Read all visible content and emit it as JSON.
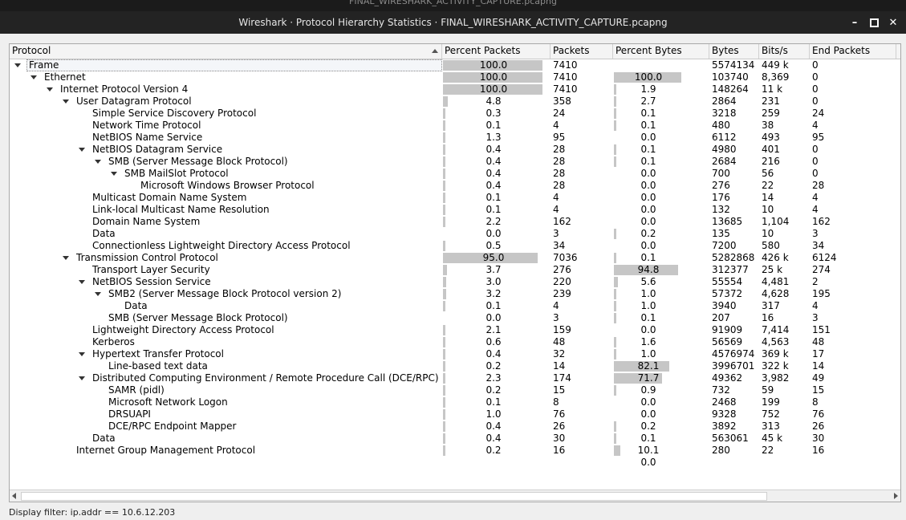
{
  "background_title": "FINAL_WIRESHARK_ACTIVITY_CAPTURE.pcapng",
  "window_title": "Wireshark · Protocol Hierarchy Statistics · FINAL_WIRESHARK_ACTIVITY_CAPTURE.pcapng",
  "window_controls": {
    "minimize": "–",
    "close": "✕"
  },
  "columns": [
    "Protocol",
    "Percent Packets",
    "Packets",
    "Percent Bytes",
    "Bytes",
    "Bits/s",
    "End Packets"
  ],
  "rows": [
    {
      "name": "Frame",
      "depth": 0,
      "expanded": true,
      "pct_packets": "100.0",
      "packets": "7410",
      "pct_bytes": "100.0",
      "bytes": "5574134",
      "bits": "449 k",
      "end_packets": "0"
    },
    {
      "name": "Ethernet",
      "depth": 1,
      "expanded": true,
      "pct_packets": "100.0",
      "packets": "7410",
      "pct_bytes": "1.9",
      "bytes": "103740",
      "bits": "8,369",
      "end_packets": "0"
    },
    {
      "name": "Internet Protocol Version 4",
      "depth": 2,
      "expanded": true,
      "pct_packets": "100.0",
      "packets": "7410",
      "pct_bytes": "2.7",
      "bytes": "148264",
      "bits": "11 k",
      "end_packets": "0"
    },
    {
      "name": "User Datagram Protocol",
      "depth": 3,
      "expanded": true,
      "pct_packets": "4.8",
      "packets": "358",
      "pct_bytes": "0.1",
      "bytes": "2864",
      "bits": "231",
      "end_packets": "0"
    },
    {
      "name": "Simple Service Discovery Protocol",
      "depth": 4,
      "expanded": false,
      "pct_packets": "0.3",
      "packets": "24",
      "pct_bytes": "0.1",
      "bytes": "3218",
      "bits": "259",
      "end_packets": "24"
    },
    {
      "name": "Network Time Protocol",
      "depth": 4,
      "expanded": false,
      "pct_packets": "0.1",
      "packets": "4",
      "pct_bytes": "0.0",
      "bytes": "480",
      "bits": "38",
      "end_packets": "4"
    },
    {
      "name": "NetBIOS Name Service",
      "depth": 4,
      "expanded": false,
      "pct_packets": "1.3",
      "packets": "95",
      "pct_bytes": "0.1",
      "bytes": "6112",
      "bits": "493",
      "end_packets": "95"
    },
    {
      "name": "NetBIOS Datagram Service",
      "depth": 4,
      "expanded": true,
      "pct_packets": "0.4",
      "packets": "28",
      "pct_bytes": "0.1",
      "bytes": "4980",
      "bits": "401",
      "end_packets": "0"
    },
    {
      "name": "SMB (Server Message Block Protocol)",
      "depth": 5,
      "expanded": true,
      "pct_packets": "0.4",
      "packets": "28",
      "pct_bytes": "0.0",
      "bytes": "2684",
      "bits": "216",
      "end_packets": "0"
    },
    {
      "name": "SMB MailSlot Protocol",
      "depth": 6,
      "expanded": true,
      "pct_packets": "0.4",
      "packets": "28",
      "pct_bytes": "0.0",
      "bytes": "700",
      "bits": "56",
      "end_packets": "0"
    },
    {
      "name": "Microsoft Windows Browser Protocol",
      "depth": 7,
      "expanded": false,
      "pct_packets": "0.4",
      "packets": "28",
      "pct_bytes": "0.0",
      "bytes": "276",
      "bits": "22",
      "end_packets": "28"
    },
    {
      "name": "Multicast Domain Name System",
      "depth": 4,
      "expanded": false,
      "pct_packets": "0.1",
      "packets": "4",
      "pct_bytes": "0.0",
      "bytes": "176",
      "bits": "14",
      "end_packets": "4"
    },
    {
      "name": "Link-local Multicast Name Resolution",
      "depth": 4,
      "expanded": false,
      "pct_packets": "0.1",
      "packets": "4",
      "pct_bytes": "0.0",
      "bytes": "132",
      "bits": "10",
      "end_packets": "4"
    },
    {
      "name": "Domain Name System",
      "depth": 4,
      "expanded": false,
      "pct_packets": "2.2",
      "packets": "162",
      "pct_bytes": "0.2",
      "bytes": "13685",
      "bits": "1,104",
      "end_packets": "162"
    },
    {
      "name": "Data",
      "depth": 4,
      "expanded": false,
      "pct_packets": "0.0",
      "packets": "3",
      "pct_bytes": "0.0",
      "bytes": "135",
      "bits": "10",
      "end_packets": "3"
    },
    {
      "name": "Connectionless Lightweight Directory Access Protocol",
      "depth": 4,
      "expanded": false,
      "pct_packets": "0.5",
      "packets": "34",
      "pct_bytes": "0.1",
      "bytes": "7200",
      "bits": "580",
      "end_packets": "34"
    },
    {
      "name": "Transmission Control Protocol",
      "depth": 3,
      "expanded": true,
      "pct_packets": "95.0",
      "packets": "7036",
      "pct_bytes": "94.8",
      "bytes": "5282868",
      "bits": "426 k",
      "end_packets": "6124"
    },
    {
      "name": "Transport Layer Security",
      "depth": 4,
      "expanded": false,
      "pct_packets": "3.7",
      "packets": "276",
      "pct_bytes": "5.6",
      "bytes": "312377",
      "bits": "25 k",
      "end_packets": "274"
    },
    {
      "name": "NetBIOS Session Service",
      "depth": 4,
      "expanded": true,
      "pct_packets": "3.0",
      "packets": "220",
      "pct_bytes": "1.0",
      "bytes": "55554",
      "bits": "4,481",
      "end_packets": "2"
    },
    {
      "name": "SMB2 (Server Message Block Protocol version 2)",
      "depth": 5,
      "expanded": true,
      "pct_packets": "3.2",
      "packets": "239",
      "pct_bytes": "1.0",
      "bytes": "57372",
      "bits": "4,628",
      "end_packets": "195"
    },
    {
      "name": "Data",
      "depth": 6,
      "expanded": false,
      "pct_packets": "0.1",
      "packets": "4",
      "pct_bytes": "0.1",
      "bytes": "3940",
      "bits": "317",
      "end_packets": "4"
    },
    {
      "name": "SMB (Server Message Block Protocol)",
      "depth": 5,
      "expanded": false,
      "pct_packets": "0.0",
      "packets": "3",
      "pct_bytes": "0.0",
      "bytes": "207",
      "bits": "16",
      "end_packets": "3"
    },
    {
      "name": "Lightweight Directory Access Protocol",
      "depth": 4,
      "expanded": false,
      "pct_packets": "2.1",
      "packets": "159",
      "pct_bytes": "1.6",
      "bytes": "91909",
      "bits": "7,414",
      "end_packets": "151"
    },
    {
      "name": "Kerberos",
      "depth": 4,
      "expanded": false,
      "pct_packets": "0.6",
      "packets": "48",
      "pct_bytes": "1.0",
      "bytes": "56569",
      "bits": "4,563",
      "end_packets": "48"
    },
    {
      "name": "Hypertext Transfer Protocol",
      "depth": 4,
      "expanded": true,
      "pct_packets": "0.4",
      "packets": "32",
      "pct_bytes": "82.1",
      "bytes": "4576974",
      "bits": "369 k",
      "end_packets": "17"
    },
    {
      "name": "Line-based text data",
      "depth": 5,
      "expanded": false,
      "pct_packets": "0.2",
      "packets": "14",
      "pct_bytes": "71.7",
      "bytes": "3996701",
      "bits": "322 k",
      "end_packets": "14"
    },
    {
      "name": "Distributed Computing Environment / Remote Procedure Call (DCE/RPC)",
      "depth": 4,
      "expanded": true,
      "pct_packets": "2.3",
      "packets": "174",
      "pct_bytes": "0.9",
      "bytes": "49362",
      "bits": "3,982",
      "end_packets": "49"
    },
    {
      "name": "SAMR (pidl)",
      "depth": 5,
      "expanded": false,
      "pct_packets": "0.2",
      "packets": "15",
      "pct_bytes": "0.0",
      "bytes": "732",
      "bits": "59",
      "end_packets": "15"
    },
    {
      "name": "Microsoft Network Logon",
      "depth": 5,
      "expanded": false,
      "pct_packets": "0.1",
      "packets": "8",
      "pct_bytes": "0.0",
      "bytes": "2468",
      "bits": "199",
      "end_packets": "8"
    },
    {
      "name": "DRSUAPI",
      "depth": 5,
      "expanded": false,
      "pct_packets": "1.0",
      "packets": "76",
      "pct_bytes": "0.2",
      "bytes": "9328",
      "bits": "752",
      "end_packets": "76"
    },
    {
      "name": "DCE/RPC Endpoint Mapper",
      "depth": 5,
      "expanded": false,
      "pct_packets": "0.4",
      "packets": "26",
      "pct_bytes": "0.1",
      "bytes": "3892",
      "bits": "313",
      "end_packets": "26"
    },
    {
      "name": "Data",
      "depth": 4,
      "expanded": false,
      "pct_packets": "0.4",
      "packets": "30",
      "pct_bytes": "10.1",
      "bytes": "563061",
      "bits": "45 k",
      "end_packets": "30"
    },
    {
      "name": "Internet Group Management Protocol",
      "depth": 3,
      "expanded": false,
      "pct_packets": "0.2",
      "packets": "16",
      "pct_bytes": "0.0",
      "bytes": "280",
      "bits": "22",
      "end_packets": "16"
    }
  ],
  "status": "Display filter: ip.addr == 10.6.12.203"
}
